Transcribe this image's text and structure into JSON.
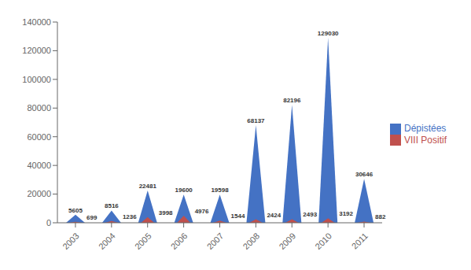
{
  "chart_data": {
    "type": "bar",
    "categories": [
      "2003",
      "2004",
      "2005",
      "2006",
      "2007",
      "2008",
      "2009",
      "2010",
      "2011"
    ],
    "series": [
      {
        "name": "Dépistées",
        "color": "#4472C4",
        "values": [
          5605,
          8516,
          22481,
          19600,
          19598,
          68137,
          82196,
          129030,
          30646
        ]
      },
      {
        "name": "VIII Positif",
        "color": "#C0504D",
        "values": [
          699,
          1236,
          3998,
          4976,
          1544,
          2424,
          2493,
          3192,
          882
        ]
      }
    ],
    "ylim": [
      0,
      140000
    ],
    "yticks": [
      0,
      20000,
      40000,
      60000,
      80000,
      100000,
      120000,
      140000
    ],
    "legend": "right",
    "data_labels": true
  }
}
